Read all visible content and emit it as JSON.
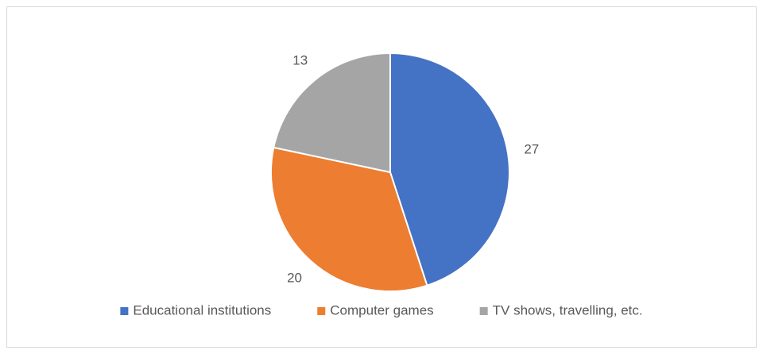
{
  "chart_data": {
    "type": "pie",
    "categories": [
      "Educational institutions",
      "Computer games",
      "TV shows, travelling, etc."
    ],
    "values": [
      27,
      20,
      13
    ],
    "colors": [
      "#4472c4",
      "#ed7d31",
      "#a5a5a5"
    ],
    "legend": "bottom"
  }
}
